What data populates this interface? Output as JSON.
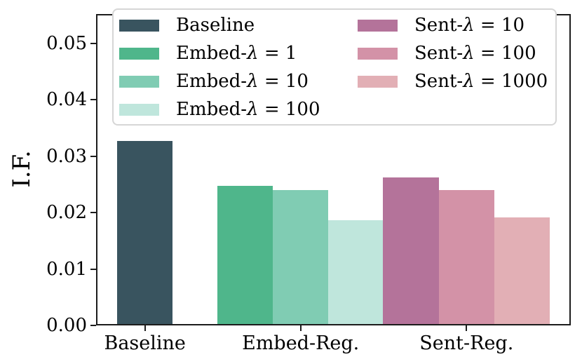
{
  "chart_data": {
    "type": "bar",
    "title": "",
    "xlabel": "",
    "ylabel": "I.F.",
    "ylim": [
      0,
      0.0552
    ],
    "yticks": [
      "0.00",
      "0.01",
      "0.02",
      "0.03",
      "0.04",
      "0.05"
    ],
    "categories": [
      "Baseline",
      "Embed-Reg.",
      "Sent-Reg."
    ],
    "grid": false,
    "legend_position": "upper center, 2 columns, inside axes",
    "series": [
      {
        "name": "Baseline",
        "group": "Baseline",
        "value": 0.0327,
        "color": "#39545f"
      },
      {
        "name": "Embed-λ = 1",
        "group": "Embed-Reg.",
        "value": 0.0247,
        "color": "#4fb68b"
      },
      {
        "name": "Embed-λ = 10",
        "group": "Embed-Reg.",
        "value": 0.024,
        "color": "#80ccb3"
      },
      {
        "name": "Embed-λ = 100",
        "group": "Embed-Reg.",
        "value": 0.0187,
        "color": "#bfe6dc"
      },
      {
        "name": "Sent-λ = 10",
        "group": "Sent-Reg.",
        "value": 0.0262,
        "color": "#b4739a"
      },
      {
        "name": "Sent-λ = 100",
        "group": "Sent-Reg.",
        "value": 0.024,
        "color": "#d392a7"
      },
      {
        "name": "Sent-λ = 1000",
        "group": "Sent-Reg.",
        "value": 0.0191,
        "color": "#e2afb5"
      }
    ],
    "legend": {
      "columns": [
        [
          "Baseline",
          "Embed-λ = 1",
          "Embed-λ = 10",
          "Embed-λ = 100"
        ],
        [
          "Sent-λ = 10",
          "Sent-λ = 100",
          "Sent-λ = 1000"
        ]
      ]
    },
    "colors": {
      "spine": "#1c1c1c",
      "legend_border": "#d6d6d6",
      "background": "#ffffff",
      "text": "#000000"
    }
  }
}
